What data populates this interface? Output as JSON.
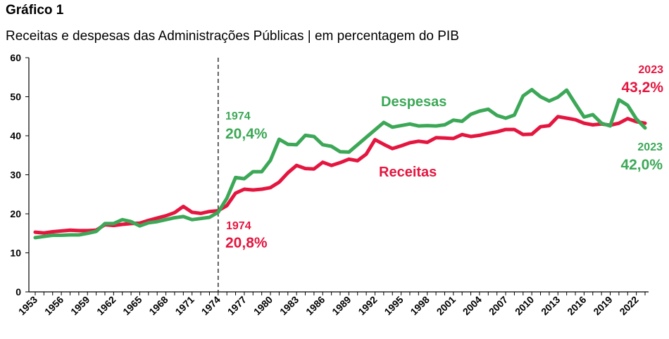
{
  "chart_data": {
    "type": "line",
    "title": "Gráfico 1",
    "subtitle": "Receitas e despesas das Administrações Públicas | em percentagem do PIB",
    "xlabel": "",
    "ylabel": "",
    "ylim": [
      0,
      60
    ],
    "xlim": [
      1953,
      2023
    ],
    "yticks": [
      0,
      10,
      20,
      30,
      40,
      50,
      60
    ],
    "xtick_labels": [
      1953,
      1956,
      1959,
      1962,
      1965,
      1968,
      1971,
      1974,
      1977,
      1980,
      1983,
      1986,
      1989,
      1992,
      1995,
      1998,
      2001,
      2004,
      2007,
      2010,
      2013,
      2016,
      2019,
      2022
    ],
    "grid": false,
    "reference_line": {
      "x": 1974,
      "style": "dashed"
    },
    "x": [
      1953,
      1954,
      1955,
      1956,
      1957,
      1958,
      1959,
      1960,
      1961,
      1962,
      1963,
      1964,
      1965,
      1966,
      1967,
      1968,
      1969,
      1970,
      1971,
      1972,
      1973,
      1974,
      1975,
      1976,
      1977,
      1978,
      1979,
      1980,
      1981,
      1982,
      1983,
      1984,
      1985,
      1986,
      1987,
      1988,
      1989,
      1990,
      1991,
      1992,
      1993,
      1994,
      1995,
      1996,
      1997,
      1998,
      1999,
      2000,
      2001,
      2002,
      2003,
      2004,
      2005,
      2006,
      2007,
      2008,
      2009,
      2010,
      2011,
      2012,
      2013,
      2014,
      2015,
      2016,
      2017,
      2018,
      2019,
      2020,
      2021,
      2022,
      2023
    ],
    "series": [
      {
        "name": "Receitas",
        "color": "#e4163f",
        "values": [
          15.3,
          15.1,
          15.4,
          15.6,
          15.8,
          15.7,
          15.7,
          15.8,
          17.2,
          17.0,
          17.3,
          17.5,
          17.6,
          18.3,
          18.9,
          19.5,
          20.3,
          21.9,
          20.4,
          20.1,
          20.6,
          20.8,
          22.1,
          25.3,
          26.3,
          26.1,
          26.3,
          26.7,
          28.1,
          30.5,
          32.4,
          31.6,
          31.5,
          33.2,
          32.4,
          33.1,
          34.0,
          33.6,
          35.3,
          39.0,
          37.8,
          36.7,
          37.4,
          38.2,
          38.6,
          38.3,
          39.5,
          39.4,
          39.3,
          40.3,
          39.8,
          40.1,
          40.6,
          41.0,
          41.6,
          41.6,
          40.3,
          40.4,
          42.3,
          42.6,
          44.9,
          44.5,
          44.1,
          43.2,
          42.8,
          43.0,
          42.7,
          43.2,
          44.4,
          43.6,
          43.2
        ]
      },
      {
        "name": "Despesas",
        "color": "#3ca857",
        "values": [
          13.9,
          14.2,
          14.5,
          14.5,
          14.6,
          14.6,
          15.0,
          15.5,
          17.5,
          17.5,
          18.5,
          18.0,
          16.9,
          17.7,
          18.0,
          18.5,
          19.0,
          19.3,
          18.5,
          18.8,
          19.1,
          20.4,
          24.0,
          29.3,
          29.0,
          30.8,
          30.8,
          33.7,
          39.1,
          37.8,
          37.7,
          40.1,
          39.8,
          37.7,
          37.3,
          35.9,
          35.8,
          37.7,
          39.6,
          41.5,
          43.4,
          42.2,
          42.6,
          43.0,
          42.5,
          42.6,
          42.5,
          42.8,
          44.0,
          43.7,
          45.5,
          46.3,
          46.8,
          45.2,
          44.5,
          45.3,
          50.2,
          51.8,
          50.0,
          48.9,
          49.9,
          51.7,
          48.2,
          44.8,
          45.4,
          43.2,
          42.5,
          49.2,
          47.8,
          44.3,
          42.0
        ]
      }
    ],
    "annotations": [
      {
        "series": "Receitas",
        "text": "Receitas"
      },
      {
        "series": "Despesas",
        "text": "Despesas"
      },
      {
        "series": "Despesas",
        "year": "1974",
        "value": "20,4%"
      },
      {
        "series": "Receitas",
        "year": "1974",
        "value": "20,8%"
      },
      {
        "series": "Receitas",
        "year": "2023",
        "value": "43,2%"
      },
      {
        "series": "Despesas",
        "year": "2023",
        "value": "42,0%"
      }
    ]
  }
}
